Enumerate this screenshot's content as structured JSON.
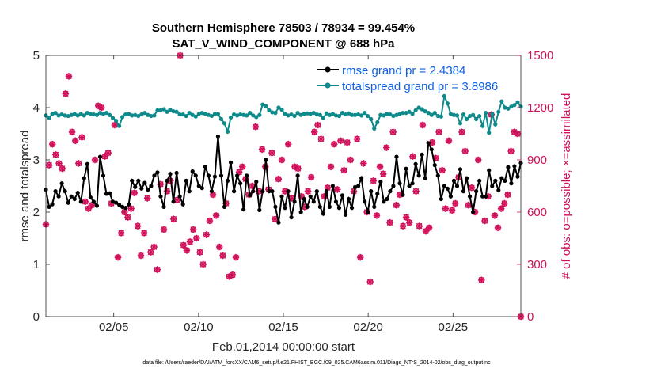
{
  "chart_data": {
    "type": "line",
    "title_line1": "Southern Hemisphere 78503 / 78934 = 99.454%",
    "title_line2": "SAT_V_WIND_COMPONENT @ 688 hPa",
    "xlabel": "Feb.01,2014 00:00:00 start",
    "ylabel_left": "rmse and totalspread",
    "ylabel_right": "# of obs: o=possible; ×=assimilated",
    "footer": "data file: /Users/raeder/DAI/ATM_forcXX/CAM6_setup/f.e21.FHIST_BGC.f09_025.CAM6assim.011/Diags_NTrS_2014-02/obs_diag_output.nc",
    "xlim": [
      1,
      29
    ],
    "x_ticks": [
      5,
      10,
      15,
      20,
      25
    ],
    "x_tick_labels": [
      "02/05",
      "02/10",
      "02/15",
      "02/20",
      "02/25"
    ],
    "ylim_left": [
      0,
      5
    ],
    "y_ticks_left": [
      "0",
      "1",
      "2",
      "3",
      "4",
      "5"
    ],
    "ylim_right": [
      0,
      1500
    ],
    "y_ticks_right": [
      "0",
      "300",
      "600",
      "900",
      "1200",
      "1500"
    ],
    "legend_position": "top-right",
    "colors": {
      "rmse": "#000000",
      "spread": "#0e8a8a",
      "obs": "#d0105a",
      "legend_text": "#1060e0",
      "right_axis": "#d0105a"
    },
    "series": [
      {
        "name": "rmse grand pr = 2.4384",
        "axis": "left",
        "color": "#000000",
        "values": [
          2.43,
          2.1,
          2.15,
          2.4,
          2.3,
          2.55,
          2.4,
          2.18,
          2.3,
          2.25,
          2.37,
          2.2,
          2.65,
          2.92,
          2.28,
          2.2,
          2.12,
          3.06,
          2.7,
          2.35,
          2.36,
          2.2,
          2.18,
          2.14,
          2.1,
          2.08,
          2.15,
          2.6,
          2.48,
          2.6,
          2.45,
          2.56,
          2.43,
          2.5,
          2.7,
          2.76,
          2.3,
          2.1,
          2.6,
          2.73,
          2.2,
          2.75,
          2.3,
          2.15,
          2.6,
          2.4,
          2.78,
          2.7,
          2.5,
          2.46,
          2.87,
          2.7,
          2.4,
          2.68,
          3.45,
          2.7,
          2.1,
          2.6,
          2.95,
          2.4,
          2.7,
          2.55,
          2.05,
          2.7,
          2.32,
          2.4,
          2.58,
          2.04,
          2.4,
          3.0,
          2.4,
          2.4,
          2.1,
          1.8,
          2.3,
          2.08,
          2.4,
          1.9,
          2.2,
          2.7,
          2.0,
          2.25,
          2.1,
          2.3,
          2.2,
          2.4,
          2.1,
          1.97,
          2.4,
          2.1,
          2.5,
          2.2,
          2.08,
          2.32,
          1.95,
          2.25,
          2.08,
          2.48,
          2.5,
          2.65,
          2.2,
          2.0,
          2.4,
          2.1,
          2.35,
          2.58,
          2.2,
          2.25,
          2.4,
          2.5,
          3.06,
          2.55,
          2.33,
          2.83,
          2.5,
          2.55,
          2.92,
          2.7,
          3.1,
          2.65,
          3.32,
          3.2,
          2.9,
          2.7,
          2.25,
          2.5,
          2.45,
          2.3,
          2.6,
          2.5,
          2.82,
          2.4,
          2.65,
          2.3,
          2.0,
          2.4,
          2.6,
          2.3,
          2.3,
          2.8,
          2.5,
          2.6,
          2.42,
          2.65,
          2.6,
          2.86,
          2.55,
          2.88,
          2.68,
          2.94
        ]
      },
      {
        "name": "totalspread grand pr = 3.8986",
        "axis": "left",
        "color": "#0e8a8a",
        "values": [
          3.85,
          3.8,
          3.88,
          3.9,
          3.85,
          3.87,
          3.85,
          3.84,
          3.86,
          3.88,
          3.85,
          3.88,
          3.85,
          3.9,
          3.88,
          3.87,
          3.86,
          3.9,
          3.88,
          3.9,
          3.86,
          3.8,
          3.75,
          3.65,
          3.82,
          3.87,
          3.88,
          3.85,
          3.86,
          3.84,
          3.87,
          3.9,
          3.86,
          3.84,
          3.85,
          3.95,
          3.95,
          3.97,
          3.92,
          3.96,
          3.93,
          3.92,
          3.87,
          3.87,
          3.84,
          3.9,
          3.86,
          3.83,
          3.88,
          3.9,
          3.88,
          3.86,
          3.84,
          3.88,
          3.88,
          3.78,
          3.7,
          3.54,
          3.81,
          3.87,
          3.85,
          3.87,
          3.86,
          3.85,
          3.9,
          3.85,
          3.82,
          3.86,
          4.06,
          4.03,
          3.95,
          3.91,
          3.9,
          4.0,
          3.96,
          3.88,
          3.85,
          3.87,
          3.84,
          3.9,
          3.86,
          3.88,
          3.89,
          3.88,
          3.9,
          3.87,
          3.86,
          3.8,
          3.89,
          3.86,
          3.88,
          3.85,
          3.84,
          3.9,
          3.87,
          3.89,
          3.86,
          3.86,
          3.87,
          3.85,
          3.9,
          3.84,
          3.78,
          3.6,
          3.72,
          3.86,
          3.85,
          3.88,
          3.87,
          3.84,
          3.86,
          3.88,
          3.9,
          3.9,
          3.92,
          3.88,
          3.95,
          4.0,
          3.97,
          3.93,
          3.9,
          3.86,
          3.9,
          3.84,
          3.83,
          4.22,
          4.08,
          3.88,
          3.86,
          3.85,
          3.7,
          3.87,
          3.78,
          3.84,
          3.86,
          3.78,
          3.84,
          3.65,
          3.9,
          3.52,
          3.88,
          3.68,
          3.92,
          4.12,
          4.0,
          3.98,
          4.02,
          4.05,
          4.1,
          4.02
        ]
      },
      {
        "name": "obs possible",
        "axis": "right",
        "color": "#d0105a",
        "marker": "o",
        "values": [
          530,
          870,
          990,
          930,
          880,
          850,
          1280,
          1380,
          1060,
          1010,
          880,
          1030,
          660,
          620,
          640,
          900,
          1210,
          1200,
          920,
          940,
          650,
          1100,
          340,
          480,
          600,
          570,
          620,
          710,
          520,
          350,
          480,
          680,
          370,
          400,
          270,
          760,
          500,
          720,
          780,
          560,
          670,
          1500,
          410,
          380,
          430,
          500,
          450,
          370,
          300,
          470,
          550,
          700,
          580,
          400,
          350,
          650,
          230,
          240,
          340,
          830,
          860,
          790,
          700,
          750,
          1090,
          720,
          960,
          860,
          730,
          940,
          560,
          790,
          900,
          720,
          990,
          680,
          860,
          850,
          690,
          630,
          720,
          800,
          1060,
          1100,
          1020,
          690,
          740,
          860,
          990,
          730,
          1010,
          840,
          1000,
          900,
          720,
          1020,
          340,
          880,
          600,
          200,
          780,
          580,
          860,
          820,
          970,
          540,
          1060,
          640,
          700,
          520,
          570,
          540,
          920,
          720,
          520,
          1100,
          490,
          510,
          1000,
          910,
          1060,
          840,
          620,
          1010,
          610,
          650,
          800,
          1060,
          950,
          640,
          740,
          600,
          900,
          210,
          550,
          690,
          1160,
          580,
          510,
          620,
          650,
          700,
          950,
          1060,
          1050,
          0
        ]
      },
      {
        "name": "obs assimilated",
        "axis": "right",
        "color": "#d0105a",
        "marker": "x",
        "values": [
          530,
          870,
          990,
          930,
          880,
          850,
          1280,
          1380,
          1060,
          1010,
          880,
          1030,
          660,
          620,
          640,
          900,
          1210,
          1200,
          920,
          940,
          650,
          1100,
          340,
          480,
          600,
          570,
          620,
          710,
          520,
          350,
          480,
          680,
          370,
          400,
          270,
          760,
          500,
          720,
          780,
          560,
          670,
          1500,
          410,
          380,
          430,
          500,
          450,
          370,
          300,
          470,
          550,
          700,
          580,
          400,
          350,
          650,
          230,
          240,
          340,
          830,
          860,
          790,
          700,
          750,
          1090,
          720,
          960,
          860,
          730,
          940,
          560,
          790,
          900,
          720,
          990,
          680,
          860,
          850,
          690,
          630,
          720,
          800,
          1060,
          1100,
          1020,
          690,
          740,
          860,
          990,
          730,
          1010,
          840,
          1000,
          900,
          720,
          1020,
          340,
          880,
          600,
          200,
          780,
          580,
          860,
          820,
          970,
          540,
          1060,
          640,
          700,
          520,
          570,
          540,
          920,
          720,
          520,
          1100,
          490,
          510,
          1000,
          910,
          1060,
          840,
          620,
          1010,
          610,
          650,
          800,
          1060,
          950,
          640,
          740,
          600,
          900,
          210,
          550,
          690,
          1160,
          580,
          510,
          620,
          650,
          700,
          950,
          1060,
          1050,
          0
        ]
      }
    ]
  }
}
